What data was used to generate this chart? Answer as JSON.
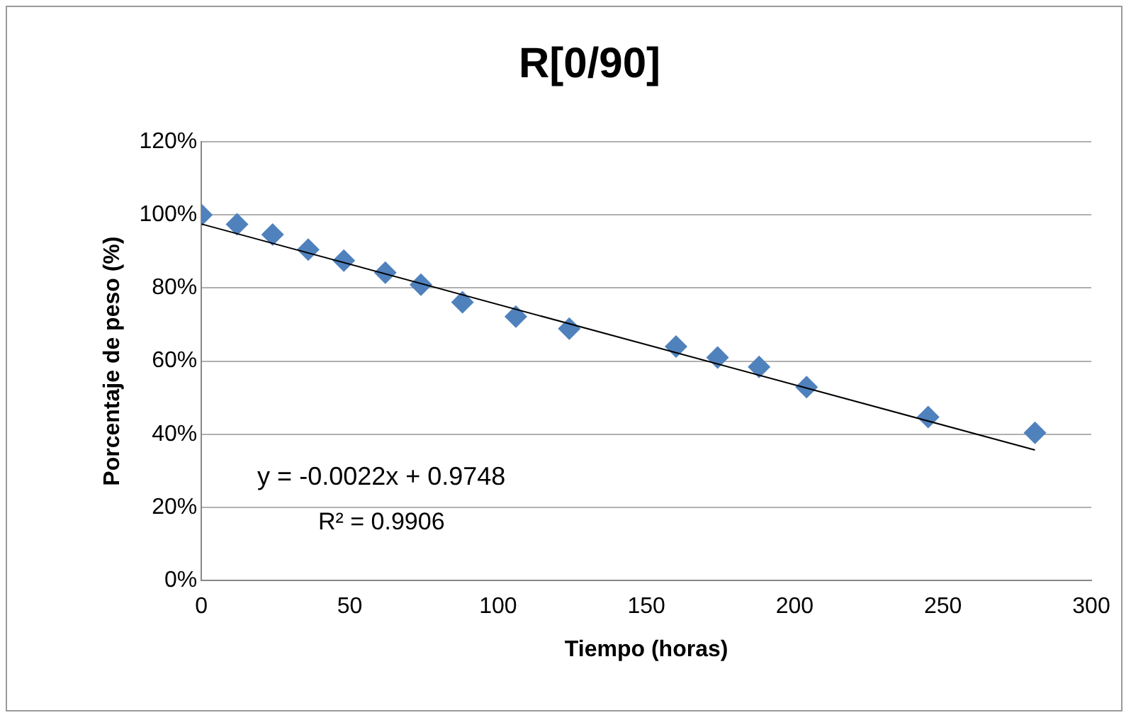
{
  "chart_data": {
    "type": "scatter",
    "title": "R[0/90]",
    "xlabel": "Tiempo (horas)",
    "ylabel": "Porcentaje de peso (%)",
    "series": [
      {
        "color": "#4f81bd",
        "marker": "diamond",
        "x": [
          0,
          12,
          24,
          36,
          48,
          62,
          74,
          88,
          106,
          124,
          160,
          174,
          188,
          204,
          245,
          281
        ],
        "values": [
          100,
          97.4,
          94.6,
          90.5,
          87.5,
          84.2,
          80.9,
          76.1,
          72.2,
          68.9,
          64.0,
          61.0,
          58.4,
          52.9,
          44.7,
          40.4
        ]
      },
      {
        "type": "line",
        "color": "#000000",
        "marker": "none",
        "x": [
          0,
          281
        ],
        "values": [
          97.5,
          35.7
        ]
      }
    ],
    "xlim": [
      0,
      300
    ],
    "xticks": [
      0,
      50,
      100,
      150,
      200,
      250,
      300
    ],
    "ylim": [
      0,
      120
    ],
    "yticks": [
      {
        "value": 0,
        "label": "0%"
      },
      {
        "value": 20,
        "label": "20%"
      },
      {
        "value": 40,
        "label": "40%"
      },
      {
        "value": 60,
        "label": "60%"
      },
      {
        "value": 80,
        "label": "80%"
      },
      {
        "value": 100,
        "label": "100%"
      },
      {
        "value": 120,
        "label": "120%"
      }
    ],
    "grid": "y",
    "legend": false,
    "annotations": [
      "y = -0.0022x + 0.9748",
      "R² = 0.9906"
    ]
  }
}
